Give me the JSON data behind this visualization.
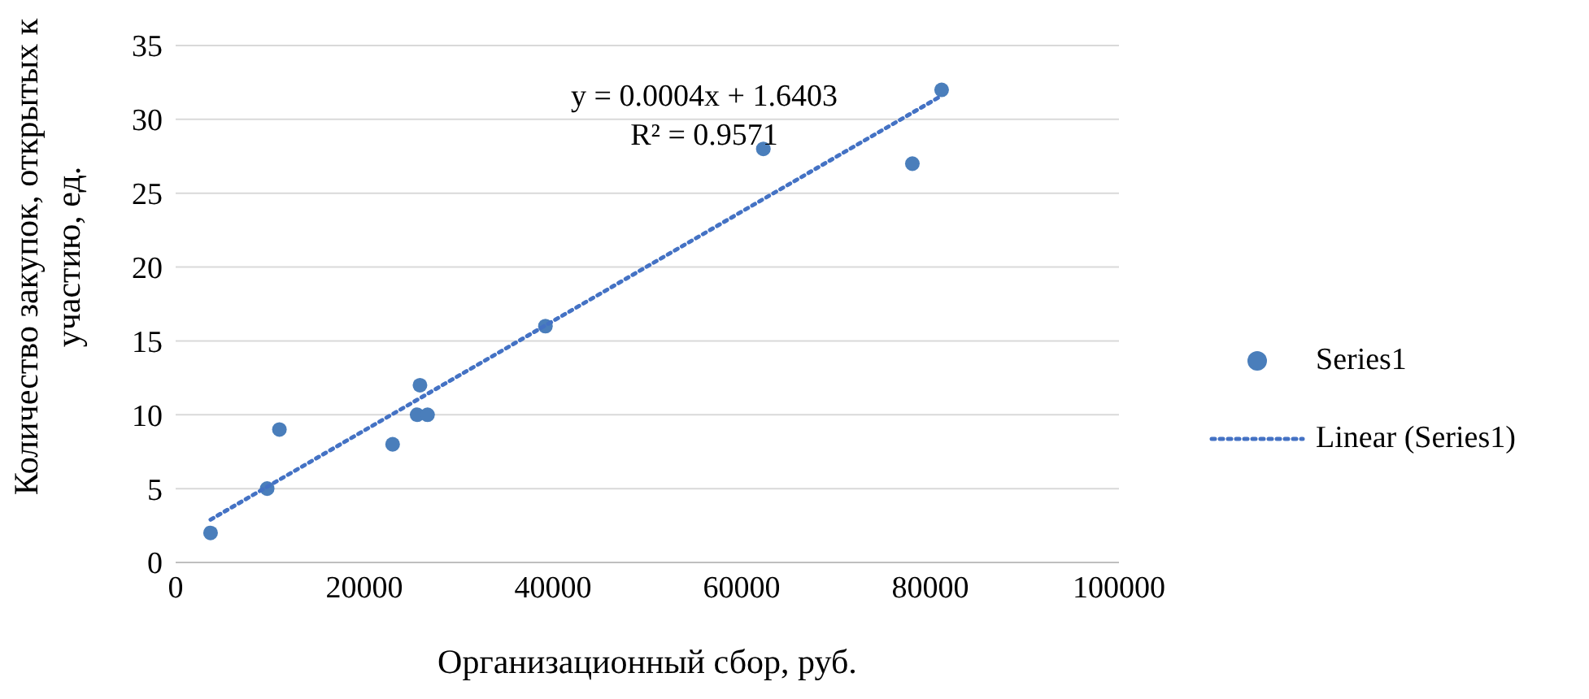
{
  "chart_data": {
    "type": "scatter",
    "xlabel": "Организационный сбор, руб.",
    "ylabel": "Количество закупок, открытых к участию, ед.",
    "xlim": [
      0,
      100000
    ],
    "xticks": [
      0,
      20000,
      40000,
      60000,
      80000,
      100000
    ],
    "ylim": [
      0,
      35
    ],
    "yticks": [
      0,
      5,
      10,
      15,
      20,
      25,
      30,
      35
    ],
    "grid": "y",
    "legend": "right",
    "annotations": [
      "y = 0.0004x + 1.6403",
      "R² = 0.9571"
    ],
    "series": [
      {
        "name": "Series1",
        "color": "#4a7ebb",
        "marker": "circle",
        "x": [
          3700,
          9700,
          11000,
          23000,
          25900,
          25600,
          26700,
          39200,
          62300,
          78100,
          81200
        ],
        "values": [
          2,
          5,
          9,
          8,
          12,
          10,
          10,
          16,
          28,
          27,
          32
        ]
      },
      {
        "name": "Linear (Series1)",
        "type": "line",
        "color": "#4472c4",
        "line_style": "dotted",
        "marker": "none",
        "x": [
          3700,
          81200
        ],
        "values": [
          2.9,
          31.6
        ]
      }
    ]
  }
}
